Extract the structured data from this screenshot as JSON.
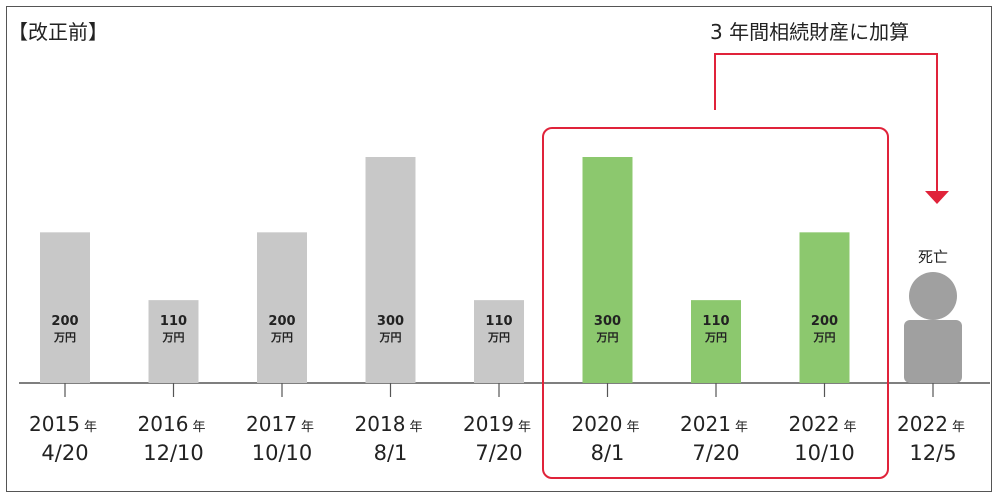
{
  "page": {
    "title": "【改正前】",
    "note": "3 年間相続財産に加算"
  },
  "chart_data": {
    "type": "bar",
    "unit": "万円",
    "year_suffix": "年",
    "categories": [
      {
        "year": "2015",
        "date": "4/20"
      },
      {
        "year": "2016",
        "date": "12/10"
      },
      {
        "year": "2017",
        "date": "10/10"
      },
      {
        "year": "2018",
        "date": "8/1"
      },
      {
        "year": "2019",
        "date": "7/20"
      },
      {
        "year": "2020",
        "date": "8/1"
      },
      {
        "year": "2021",
        "date": "7/20"
      },
      {
        "year": "2022",
        "date": "10/10"
      }
    ],
    "values": [
      200,
      110,
      200,
      300,
      110,
      300,
      110,
      200
    ],
    "highlighted": [
      false,
      false,
      false,
      false,
      false,
      true,
      true,
      true
    ],
    "death_marker": {
      "year": "2022",
      "date": "12/5",
      "label": "死亡"
    },
    "colors": {
      "normal_bar": "#c8c8c8",
      "highlight_bar": "#8cc86e",
      "highlight_box": "#e0233a",
      "person": "#a0a0a0",
      "axis": "#555555"
    }
  }
}
